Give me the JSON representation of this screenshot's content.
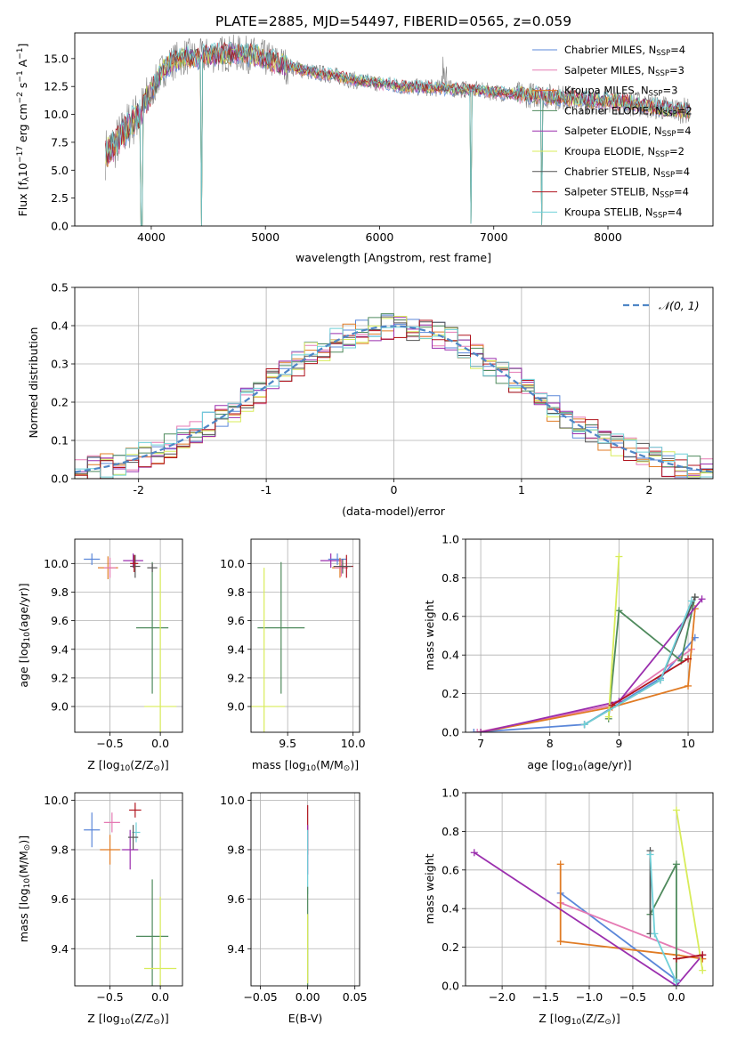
{
  "figure": {
    "title": "PLATE=2885, MJD=54497, FIBERID=0565, z=0.059"
  },
  "colors": {
    "chabrier_miles": "#5b87d9",
    "salpeter_miles": "#e57ab4",
    "kroupa_miles": "#e07b24",
    "chabrier_elodie": "#4f8a5d",
    "salpeter_elodie": "#9b2fae",
    "kroupa_elodie": "#d8ec5a",
    "chabrier_stelib": "#555555",
    "salpeter_stelib": "#b0151f",
    "kroupa_stelib": "#6fd0d8",
    "gaussian": "#4f86c6",
    "data": "#808080"
  },
  "chart_data": [
    {
      "id": "spectrum",
      "type": "line",
      "title": "PLATE=2885, MJD=54497, FIBERID=0565, z=0.059",
      "xlabel": "wavelength [Angstrom, rest frame]",
      "ylabel_parts": [
        "Flux [f",
        "λ",
        "10",
        "−17",
        " erg cm",
        "−2",
        " s",
        "−1",
        " A",
        "−1",
        "]"
      ],
      "xlim": [
        3330,
        8920
      ],
      "ylim": [
        0,
        17.3
      ],
      "xticks": [
        4000,
        5000,
        6000,
        7000,
        8000
      ],
      "yticks": [
        0.0,
        2.5,
        5.0,
        7.5,
        10.0,
        12.5,
        15.0
      ],
      "legend": [
        {
          "label": "Chabrier MILES, N",
          "sub": "SSP",
          "tail": "=4",
          "color": "#5b87d9"
        },
        {
          "label": "Salpeter MILES, N",
          "sub": "SSP",
          "tail": "=3",
          "color": "#e57ab4"
        },
        {
          "label": "Kroupa MILES, N",
          "sub": "SSP",
          "tail": "=3",
          "color": "#e07b24"
        },
        {
          "label": "Chabrier ELODIE, N",
          "sub": "SSP",
          "tail": "=2",
          "color": "#4f8a5d"
        },
        {
          "label": "Salpeter ELODIE, N",
          "sub": "SSP",
          "tail": "=4",
          "color": "#9b2fae"
        },
        {
          "label": "Kroupa ELODIE, N",
          "sub": "SSP",
          "tail": "=2",
          "color": "#d8ec5a"
        },
        {
          "label": "Chabrier STELIB, N",
          "sub": "SSP",
          "tail": "=4",
          "color": "#555555"
        },
        {
          "label": "Salpeter STELIB, N",
          "sub": "SSP",
          "tail": "=4",
          "color": "#b0151f"
        },
        {
          "label": "Kroupa STELIB, N",
          "sub": "SSP",
          "tail": "=4",
          "color": "#6fd0d8"
        }
      ],
      "continuum": [
        [
          3600,
          6.5
        ],
        [
          3700,
          7.5
        ],
        [
          3800,
          9.0
        ],
        [
          3900,
          10.0
        ],
        [
          4000,
          12.0
        ],
        [
          4100,
          14.0
        ],
        [
          4200,
          14.8
        ],
        [
          4300,
          15.2
        ],
        [
          4400,
          15.0
        ],
        [
          4500,
          15.3
        ],
        [
          4600,
          15.4
        ],
        [
          4700,
          15.5
        ],
        [
          4800,
          15.4
        ],
        [
          4900,
          15.3
        ],
        [
          5000,
          15.0
        ],
        [
          5200,
          14.3
        ],
        [
          5400,
          13.8
        ],
        [
          5600,
          13.5
        ],
        [
          5800,
          13.0
        ],
        [
          6000,
          12.8
        ],
        [
          6200,
          12.5
        ],
        [
          6400,
          12.4
        ],
        [
          6600,
          12.3
        ],
        [
          6800,
          12.2
        ],
        [
          7000,
          12.0
        ],
        [
          7200,
          11.8
        ],
        [
          7400,
          11.7
        ],
        [
          7600,
          11.5
        ],
        [
          7800,
          11.3
        ],
        [
          8000,
          11.2
        ],
        [
          8200,
          11.0
        ],
        [
          8400,
          10.7
        ],
        [
          8600,
          10.4
        ],
        [
          8720,
          10.3
        ]
      ],
      "absorption_dips": [
        [
          3915,
          0
        ],
        [
          4440,
          0
        ],
        [
          6800,
          0.2
        ],
        [
          7420,
          0.1
        ]
      ]
    },
    {
      "id": "residual-histogram",
      "type": "area",
      "xlabel": "(data-model)/error",
      "ylabel": "Normed distribution",
      "xlim": [
        -2.5,
        2.5
      ],
      "ylim": [
        0,
        0.5
      ],
      "xticks": [
        -2,
        -1,
        0,
        1,
        2
      ],
      "yticks": [
        0.0,
        0.1,
        0.2,
        0.3,
        0.4,
        0.5
      ],
      "legend": [
        {
          "label": "𝒩(0, 1)",
          "color": "#4f86c6"
        }
      ],
      "bin_width": 0.1,
      "gaussian": {
        "mean": 0,
        "sigma": 1
      }
    },
    {
      "id": "age-vs-z",
      "type": "scatter",
      "xlabel_parts": [
        "Z [log",
        "10",
        "(Z/Z",
        "⊙",
        ")]"
      ],
      "ylabel_parts": [
        "age  [log",
        "10",
        "(age/yr)]"
      ],
      "xlim": [
        -0.85,
        0.22
      ],
      "ylim": [
        8.82,
        10.17
      ],
      "xticks": [
        -0.5,
        0.0
      ],
      "xticklabels": [
        "−0.5",
        "0.0"
      ],
      "yticks": [
        9.0,
        9.2,
        9.4,
        9.6,
        9.8,
        10.0
      ],
      "points": [
        {
          "x": -0.68,
          "y": 10.03,
          "xerr": 0.08,
          "yerr": 0.04,
          "color": "#5b87d9"
        },
        {
          "x": -0.52,
          "y": 9.97,
          "xerr": 0.1,
          "yerr": 0.08,
          "color": "#e07b24"
        },
        {
          "x": -0.5,
          "y": 9.97,
          "xerr": 0.06,
          "yerr": 0.07,
          "color": "#e57ab4"
        },
        {
          "x": -0.27,
          "y": 10.02,
          "xerr": 0.1,
          "yerr": 0.05,
          "color": "#9b2fae"
        },
        {
          "x": -0.25,
          "y": 9.98,
          "xerr": 0.05,
          "yerr": 0.08,
          "color": "#555555"
        },
        {
          "x": -0.26,
          "y": 10.0,
          "xerr": 0.04,
          "yerr": 0.06,
          "color": "#b0151f"
        },
        {
          "x": -0.08,
          "y": 9.55,
          "xerr": 0.16,
          "yerr": 0.46,
          "color": "#4f8a5d"
        },
        {
          "x": -0.08,
          "y": 9.97,
          "xerr": 0.05,
          "yerr": 0.03,
          "color": "#555555"
        },
        {
          "x": 0.0,
          "y": 9.0,
          "xerr": 0.16,
          "yerr": 0.97,
          "color": "#d8ec5a"
        }
      ]
    },
    {
      "id": "age-vs-mass",
      "type": "scatter",
      "xlabel_parts": [
        "mass [log",
        "10",
        "(M/M",
        "⊙",
        ")]"
      ],
      "ylabel": "",
      "xlim": [
        9.22,
        10.05
      ],
      "ylim": [
        8.82,
        10.17
      ],
      "xticks": [
        9.5,
        10.0
      ],
      "xticklabels": [
        "9.5",
        "10.0"
      ],
      "yticks": [
        9.0,
        9.2,
        9.4,
        9.6,
        9.8,
        10.0
      ],
      "points": [
        {
          "x": 9.83,
          "y": 10.02,
          "xerr": 0.08,
          "yerr": 0.05,
          "color": "#9b2fae"
        },
        {
          "x": 9.88,
          "y": 10.03,
          "xerr": 0.07,
          "yerr": 0.04,
          "color": "#5b87d9"
        },
        {
          "x": 9.9,
          "y": 9.97,
          "xerr": 0.06,
          "yerr": 0.07,
          "color": "#e07b24"
        },
        {
          "x": 9.91,
          "y": 9.97,
          "xerr": 0.05,
          "yerr": 0.06,
          "color": "#e57ab4"
        },
        {
          "x": 9.95,
          "y": 9.98,
          "xerr": 0.05,
          "yerr": 0.08,
          "color": "#b0151f"
        },
        {
          "x": 9.92,
          "y": 9.98,
          "xerr": 0.07,
          "yerr": 0.05,
          "color": "#555555"
        },
        {
          "x": 9.45,
          "y": 9.55,
          "xerr": 0.18,
          "yerr": 0.46,
          "color": "#4f8a5d"
        },
        {
          "x": 9.32,
          "y": 9.0,
          "xerr": 0.16,
          "yerr": 0.97,
          "color": "#d8ec5a"
        }
      ]
    },
    {
      "id": "mass-weight-vs-age",
      "type": "line",
      "xlabel_parts": [
        "age  [log",
        "10",
        "(age/yr)]"
      ],
      "ylabel": "mass weight",
      "xlim": [
        6.78,
        10.36
      ],
      "ylim": [
        0,
        1.0
      ],
      "xticks": [
        7,
        8,
        9,
        10
      ],
      "yticks": [
        0.0,
        0.2,
        0.4,
        0.6,
        0.8,
        1.0
      ],
      "series": [
        {
          "color": "#5b87d9",
          "x": [
            6.9,
            8.5,
            9.6,
            10.1
          ],
          "y": [
            0.0,
            0.04,
            0.28,
            0.49
          ]
        },
        {
          "color": "#e57ab4",
          "x": [
            6.95,
            8.9,
            10.05
          ],
          "y": [
            0.0,
            0.14,
            0.43
          ]
        },
        {
          "color": "#e07b24",
          "x": [
            7.0,
            8.9,
            10.0,
            10.1
          ],
          "y": [
            0.0,
            0.13,
            0.24,
            0.64
          ]
        },
        {
          "color": "#4f8a5d",
          "x": [
            8.85,
            9.0,
            9.9,
            10.1
          ],
          "y": [
            0.07,
            0.63,
            0.37,
            0.7
          ]
        },
        {
          "color": "#9b2fae",
          "x": [
            7.0,
            9.0,
            10.2
          ],
          "y": [
            0.0,
            0.16,
            0.69
          ]
        },
        {
          "color": "#d8ec5a",
          "x": [
            8.85,
            9.0
          ],
          "y": [
            0.08,
            0.91
          ]
        },
        {
          "color": "#555555",
          "x": [
            8.5,
            9.6,
            10.1
          ],
          "y": [
            0.04,
            0.27,
            0.7
          ]
        },
        {
          "color": "#b0151f",
          "x": [
            8.9,
            10.0
          ],
          "y": [
            0.14,
            0.38
          ]
        },
        {
          "color": "#6fd0d8",
          "x": [
            8.5,
            9.6,
            10.05
          ],
          "y": [
            0.04,
            0.27,
            0.68
          ]
        }
      ]
    },
    {
      "id": "mass-vs-z",
      "type": "scatter",
      "xlabel_parts": [
        "Z [log",
        "10",
        "(Z/Z",
        "⊙",
        ")]"
      ],
      "ylabel_parts": [
        "mass [log",
        "10",
        "(M/M",
        "⊙",
        ")]"
      ],
      "xlim": [
        -0.85,
        0.22
      ],
      "ylim": [
        9.25,
        10.03
      ],
      "xticks": [
        -0.5,
        0.0
      ],
      "xticklabels": [
        "−0.5",
        "0.0"
      ],
      "yticks": [
        9.4,
        9.6,
        9.8,
        10.0
      ],
      "points": [
        {
          "x": -0.68,
          "y": 9.88,
          "xerr": 0.08,
          "yerr": 0.07,
          "color": "#5b87d9"
        },
        {
          "x": -0.48,
          "y": 9.91,
          "xerr": 0.08,
          "yerr": 0.04,
          "color": "#e57ab4"
        },
        {
          "x": -0.5,
          "y": 9.8,
          "xerr": 0.1,
          "yerr": 0.06,
          "color": "#e07b24"
        },
        {
          "x": -0.3,
          "y": 9.8,
          "xerr": 0.08,
          "yerr": 0.08,
          "color": "#9b2fae"
        },
        {
          "x": -0.25,
          "y": 9.96,
          "xerr": 0.06,
          "yerr": 0.03,
          "color": "#b0151f"
        },
        {
          "x": -0.24,
          "y": 9.87,
          "xerr": 0.04,
          "yerr": 0.04,
          "color": "#6fd0d8"
        },
        {
          "x": -0.27,
          "y": 9.85,
          "xerr": 0.05,
          "yerr": 0.05,
          "color": "#555555"
        },
        {
          "x": -0.08,
          "y": 9.45,
          "xerr": 0.16,
          "yerr": 0.23,
          "color": "#4f8a5d"
        },
        {
          "x": 0.0,
          "y": 9.32,
          "xerr": 0.16,
          "yerr": 0.29,
          "color": "#d8ec5a"
        }
      ]
    },
    {
      "id": "mass-vs-ebv",
      "type": "scatter",
      "xlabel": "E(B-V)",
      "ylabel": "",
      "xlim": [
        -0.06,
        0.055
      ],
      "ylim": [
        9.25,
        10.03
      ],
      "xticks": [
        -0.05,
        0.0,
        0.05
      ],
      "xticklabels": [
        "−0.05",
        "0.00",
        "0.05"
      ],
      "yticks": [
        9.4,
        9.6,
        9.8,
        10.0
      ],
      "points": [
        {
          "x": 0.0,
          "y": 9.88,
          "xerr": 0,
          "yerr": 0.1,
          "color": "#b0151f"
        },
        {
          "x": 0.0,
          "y": 9.8,
          "xerr": 0,
          "yerr": 0.1,
          "color": "#9b2fae"
        },
        {
          "x": 0.0,
          "y": 9.75,
          "xerr": 0,
          "yerr": 0.13,
          "color": "#6fd0d8"
        },
        {
          "x": 0.0,
          "y": 9.45,
          "xerr": 0,
          "yerr": 0.2,
          "color": "#4f8a5d"
        },
        {
          "x": 0.0,
          "y": 9.4,
          "xerr": 0,
          "yerr": 0.14,
          "color": "#d8ec5a"
        }
      ]
    },
    {
      "id": "mass-weight-vs-z",
      "type": "line",
      "xlabel_parts": [
        "Z [log",
        "10",
        "(Z/Z",
        "⊙",
        ")]"
      ],
      "ylabel": "mass weight",
      "xlim": [
        -2.42,
        0.42
      ],
      "ylim": [
        0,
        1.0
      ],
      "xticks": [
        -2.0,
        -1.5,
        -1.0,
        -0.5,
        0.0
      ],
      "xticklabels": [
        "−2.0",
        "−1.5",
        "−1.0",
        "−0.5",
        "0.0"
      ],
      "yticks": [
        0.0,
        0.2,
        0.4,
        0.6,
        0.8,
        1.0
      ],
      "series": [
        {
          "color": "#5b87d9",
          "x": [
            -1.33,
            0.0,
            0.0
          ],
          "y": [
            0.48,
            0.03,
            0.0
          ]
        },
        {
          "color": "#e57ab4",
          "x": [
            -1.33,
            0.3
          ],
          "y": [
            0.43,
            0.14
          ]
        },
        {
          "color": "#e07b24",
          "x": [
            -1.33,
            -1.33,
            0.0,
            0.3
          ],
          "y": [
            0.63,
            0.23,
            0.16,
            0.14
          ]
        },
        {
          "color": "#4f8a5d",
          "x": [
            -0.3,
            0.0,
            0.0
          ],
          "y": [
            0.37,
            0.63,
            0.0
          ]
        },
        {
          "color": "#9b2fae",
          "x": [
            -2.32,
            0.0,
            0.3
          ],
          "y": [
            0.69,
            0.0,
            0.16
          ]
        },
        {
          "color": "#d8ec5a",
          "x": [
            0.0,
            0.3
          ],
          "y": [
            0.91,
            0.08
          ]
        },
        {
          "color": "#555555",
          "x": [
            -0.3,
            -0.3
          ],
          "y": [
            0.7,
            0.27
          ]
        },
        {
          "color": "#b0151f",
          "x": [
            0.0,
            0.3
          ],
          "y": [
            0.14,
            0.16
          ]
        },
        {
          "color": "#6fd0d8",
          "x": [
            -0.3,
            -0.25,
            0.0
          ],
          "y": [
            0.68,
            0.27,
            0.02
          ]
        }
      ]
    }
  ]
}
